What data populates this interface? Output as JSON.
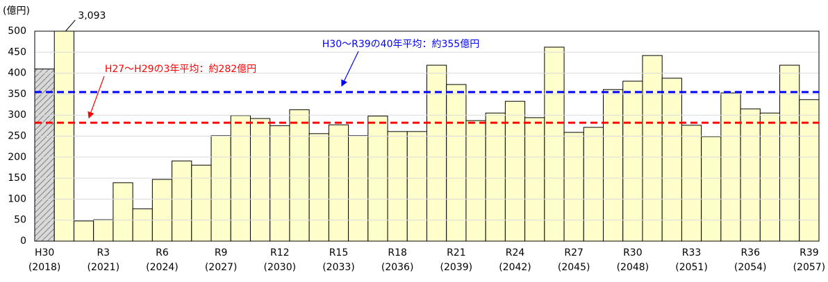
{
  "chart_data": {
    "type": "bar",
    "y_axis_label": "(億円)",
    "categories": [
      "H30",
      null,
      null,
      "R3",
      null,
      null,
      "R6",
      null,
      null,
      "R9",
      null,
      null,
      "R12",
      null,
      null,
      "R15",
      null,
      null,
      "R18",
      null,
      null,
      "R21",
      null,
      null,
      "R24",
      null,
      null,
      "R27",
      null,
      null,
      "R30",
      null,
      null,
      "R33",
      null,
      null,
      "R36",
      null,
      null,
      "R39"
    ],
    "category_years": [
      "(2018)",
      null,
      null,
      "(2021)",
      null,
      null,
      "(2024)",
      null,
      null,
      "(2027)",
      null,
      null,
      "(2030)",
      null,
      null,
      "(2033)",
      null,
      null,
      "(2036)",
      null,
      null,
      "(2039)",
      null,
      null,
      "(2042)",
      null,
      null,
      "(2045)",
      null,
      null,
      "(2048)",
      null,
      null,
      "(2051)",
      null,
      null,
      "(2054)",
      null,
      null,
      "(2057)"
    ],
    "values": [
      410,
      3093,
      48,
      51,
      139,
      77,
      147,
      191,
      181,
      251,
      299,
      292,
      275,
      313,
      256,
      277,
      251,
      298,
      261,
      261,
      419,
      373,
      287,
      305,
      333,
      294,
      462,
      259,
      271,
      361,
      381,
      442,
      388,
      276,
      249,
      353,
      315,
      305,
      419,
      337
    ],
    "value_labels": [
      null,
      "3,093",
      null,
      null,
      null,
      null,
      null,
      null,
      null,
      null,
      null,
      null,
      null,
      null,
      null,
      null,
      null,
      null,
      null,
      null,
      null,
      null,
      null,
      null,
      null,
      null,
      null,
      null,
      null,
      null,
      null,
      null,
      null,
      null,
      null,
      null,
      null,
      null,
      null,
      null
    ],
    "color": "#ffffcc",
    "hatched_indices": [
      0
    ],
    "ylim": [
      0,
      500
    ],
    "yticks": [
      0,
      50,
      100,
      150,
      200,
      250,
      300,
      350,
      400,
      450,
      500
    ],
    "grid": true,
    "reference_lines": [
      {
        "value": 282,
        "label": "H27～H29の3年平均：約282億円",
        "color": "#ff0000"
      },
      {
        "value": 355,
        "label": "H30～R39の40年平均：約355億円",
        "color": "#0000ff"
      }
    ]
  }
}
